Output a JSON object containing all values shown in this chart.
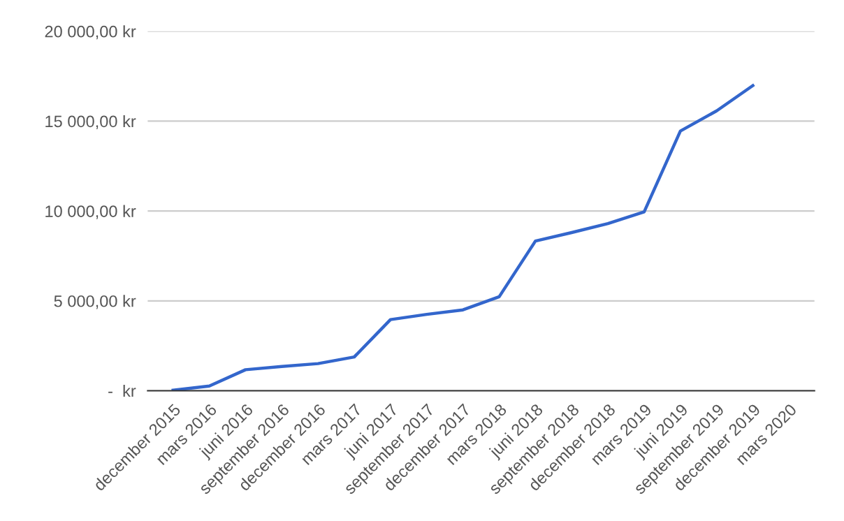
{
  "chart_data": {
    "type": "line",
    "categories": [
      "december 2015",
      "mars 2016",
      "juni 2016",
      "september 2016",
      "december 2016",
      "mars 2017",
      "juni 2017",
      "september 2017",
      "december 2017",
      "mars 2018",
      "juni 2018",
      "september 2018",
      "december 2018",
      "mars 2019",
      "juni 2019",
      "september 2019",
      "december 2019",
      "mars 2020"
    ],
    "series": [
      {
        "color": "#3366cc",
        "values": [
          30,
          260,
          1170,
          1350,
          1510,
          1880,
          3960,
          4250,
          4500,
          5230,
          8330,
          8800,
          9300,
          9950,
          14450,
          15570,
          16980,
          null
        ]
      }
    ],
    "ylim": [
      0,
      20000
    ],
    "yticks": [
      {
        "value": 0,
        "label": "-  kr"
      },
      {
        "value": 5000,
        "label": "5 000,00 kr"
      },
      {
        "value": 10000,
        "label": "10 000,00 kr"
      },
      {
        "value": 15000,
        "label": "15 000,00 kr"
      },
      {
        "value": 20000,
        "label": "20 000,00 kr"
      }
    ],
    "grid": "y",
    "legend": false,
    "marker": "none",
    "line_style": "solid"
  }
}
